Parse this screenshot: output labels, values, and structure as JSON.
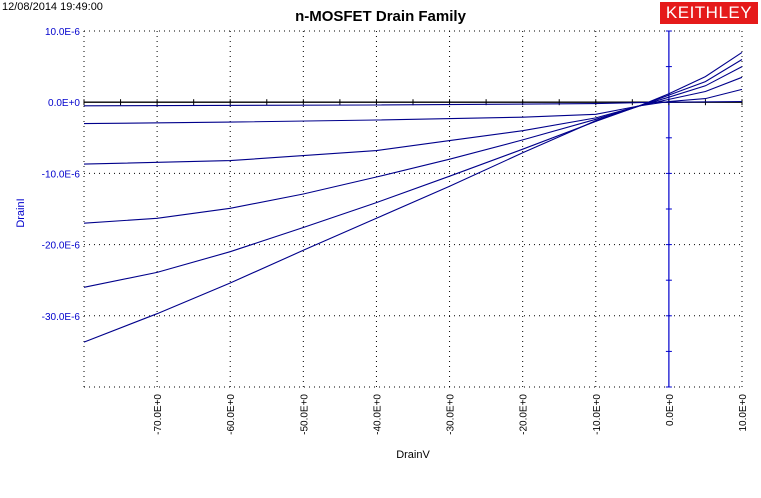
{
  "timestamp": "12/08/2014 19:49:00",
  "logo_text": "KEITHLEY",
  "colors": {
    "series": "#00008b",
    "axis": "#0000cc",
    "grid": "#000000",
    "logo_bg": "#e51a1a"
  },
  "chart_data": {
    "type": "line",
    "title": "n-MOSFET Drain Family",
    "xlabel": "DrainV",
    "ylabel": "DrainI",
    "xlim": [
      -80,
      10
    ],
    "ylim": [
      -4e-05,
      1e-05
    ],
    "x_ticks": [
      "-70.0E+0",
      "-60.0E+0",
      "-50.0E+0",
      "-40.0E+0",
      "-30.0E+0",
      "-20.0E+0",
      "-10.0E+0",
      "0.0E+0",
      "10.0E+0"
    ],
    "x_tick_values": [
      -70,
      -60,
      -50,
      -40,
      -30,
      -20,
      -10,
      0,
      10
    ],
    "y_ticks": [
      "10.0E-6",
      "0.0E+0",
      "-10.0E-6",
      "-20.0E-6",
      "-30.0E-6"
    ],
    "y_tick_values": [
      1e-05,
      0,
      -1e-05,
      -2e-05,
      -3e-05
    ],
    "grid": true,
    "series": [
      {
        "x": [
          -80,
          -40,
          -10,
          -4,
          0,
          10
        ],
        "y": [
          -5e-07,
          -4e-07,
          -2e-07,
          -5e-08,
          0,
          1e-07
        ]
      },
      {
        "x": [
          -80,
          -60,
          -40,
          -20,
          -10,
          -4,
          0,
          5,
          10
        ],
        "y": [
          -3e-06,
          -2.8e-06,
          -2.5e-06,
          -2.1e-06,
          -1.7e-06,
          -5e-07,
          1e-07,
          5e-07,
          1.8e-06
        ]
      },
      {
        "x": [
          -80,
          -60,
          -40,
          -30,
          -20,
          -10,
          -4,
          0,
          5,
          10
        ],
        "y": [
          -8.7e-06,
          -8.2e-06,
          -6.8e-06,
          -5.4e-06,
          -4e-06,
          -2.2e-06,
          -5e-07,
          4e-07,
          1.5e-06,
          3.5e-06
        ]
      },
      {
        "x": [
          -80,
          -70,
          -60,
          -50,
          -40,
          -30,
          -20,
          -10,
          -4,
          0,
          5,
          10
        ],
        "y": [
          -1.7e-05,
          -1.63e-05,
          -1.49e-05,
          -1.29e-05,
          -1.05e-05,
          -8e-06,
          -5.3e-06,
          -2.4e-06,
          -5e-07,
          7e-07,
          2.3e-06,
          5e-06
        ]
      },
      {
        "x": [
          -80,
          -70,
          -60,
          -50,
          -40,
          -30,
          -20,
          -10,
          -4,
          0,
          5,
          10
        ],
        "y": [
          -2.6e-05,
          -2.39e-05,
          -2.1e-05,
          -1.76e-05,
          -1.41e-05,
          -1.04e-05,
          -6.6e-06,
          -2.7e-06,
          -5e-07,
          1e-06,
          2.9e-06,
          6e-06
        ]
      },
      {
        "x": [
          -80,
          -70,
          -60,
          -50,
          -40,
          -30,
          -20,
          -10,
          -4,
          0,
          5,
          10
        ],
        "y": [
          -3.37e-05,
          -2.97e-05,
          -2.54e-05,
          -2.08e-05,
          -1.63e-05,
          -1.18e-05,
          -7.1e-06,
          -2.6e-06,
          -5e-07,
          1.2e-06,
          3.6e-06,
          7e-06
        ]
      }
    ]
  }
}
